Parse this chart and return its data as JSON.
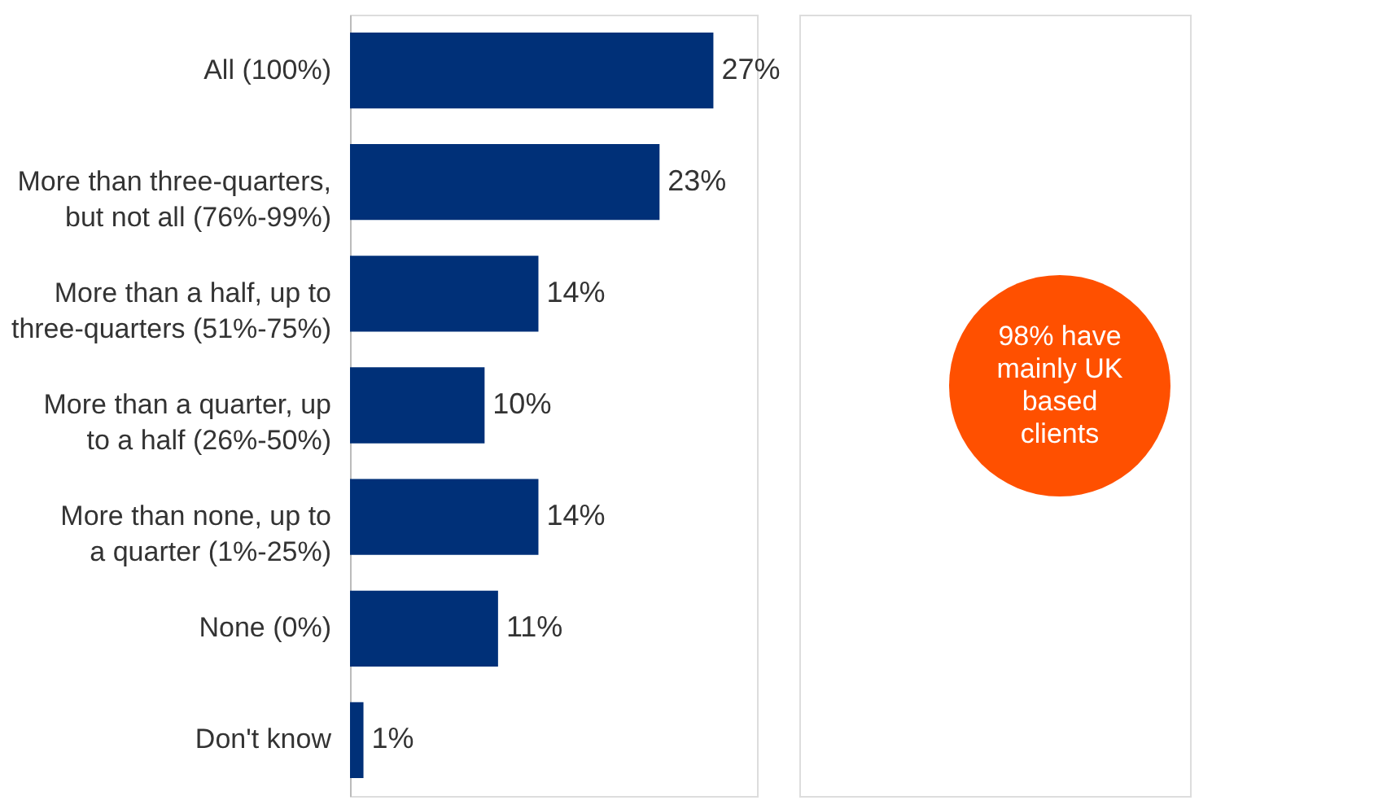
{
  "chart_data": {
    "type": "bar",
    "orientation": "horizontal",
    "data_labels": true,
    "categories": [
      "All (100%)",
      "More than three-quarters,\nbut not all (76%-99%)",
      "More than a half, up to\nthree-quarters (51%-75%)",
      "More than a quarter, up\nto a half (26%-50%)",
      "More than none, up to\na quarter (1%-25%)",
      "None (0%)",
      "Don't know"
    ],
    "values": [
      27,
      23,
      14,
      10,
      14,
      11,
      1
    ],
    "color": "#003078",
    "value_labels": [
      "27%",
      "23%",
      "14%",
      "10%",
      "14%",
      "11%",
      "1%"
    ],
    "annotations": [
      "98% have\nmainly UK\nbased\nclients"
    ]
  }
}
